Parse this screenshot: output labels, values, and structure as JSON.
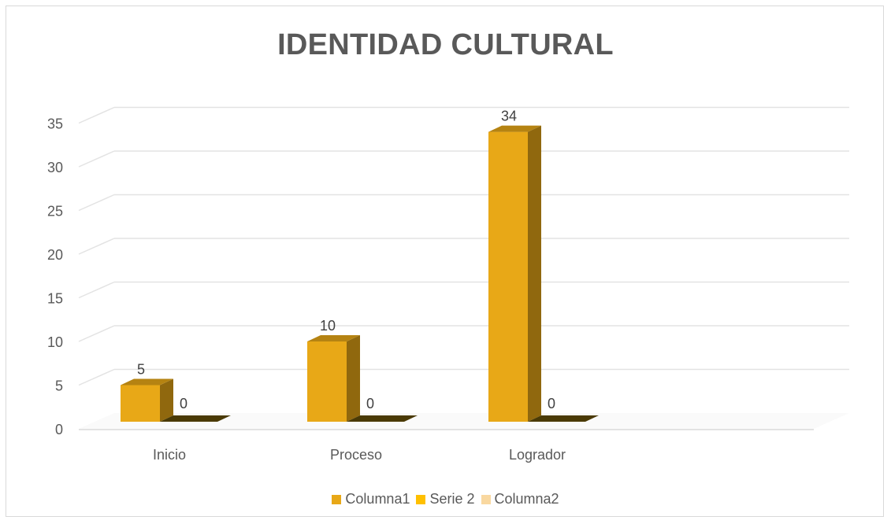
{
  "chart_data": {
    "type": "bar",
    "title": "IDENTIDAD CULTURAL",
    "xlabel": "",
    "ylabel": "",
    "categories": [
      "Inicio",
      "Proceso",
      "Logrador"
    ],
    "series": [
      {
        "name": "Columna1",
        "values": [
          5,
          10,
          34
        ],
        "color": "#e8a817"
      },
      {
        "name": "Serie 2",
        "values": [
          0,
          0,
          0
        ],
        "color": "#ffc000"
      },
      {
        "name": "Columna2",
        "values": [
          null,
          null,
          null
        ],
        "color": "#f9d8a0"
      }
    ],
    "yticks": [
      "0",
      "5",
      "10",
      "15",
      "20",
      "25",
      "30",
      "35"
    ],
    "ylim": [
      0,
      35
    ],
    "grid": true,
    "legend_position": "bottom",
    "style": "3d-column"
  }
}
